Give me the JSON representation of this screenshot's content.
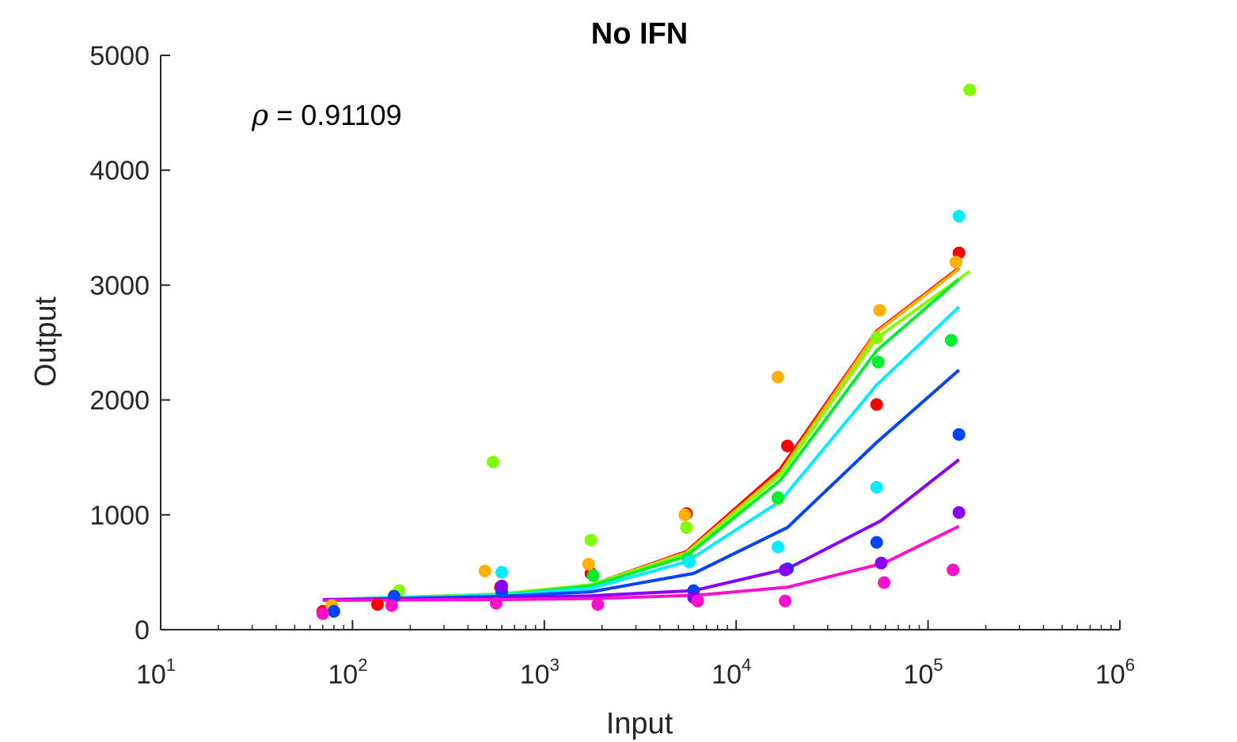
{
  "chart_data": {
    "type": "scatter",
    "title": "No IFN",
    "xlabel": "Input",
    "ylabel": "Output",
    "xscale": "log",
    "xlim": [
      10,
      1000000
    ],
    "ylim": [
      0,
      5000
    ],
    "xticks": [
      {
        "value": 10,
        "base": "10",
        "exp": "1"
      },
      {
        "value": 100,
        "base": "10",
        "exp": "2"
      },
      {
        "value": 1000,
        "base": "10",
        "exp": "3"
      },
      {
        "value": 10000,
        "base": "10",
        "exp": "4"
      },
      {
        "value": 100000,
        "base": "10",
        "exp": "5"
      },
      {
        "value": 1000000,
        "base": "10",
        "exp": "6"
      }
    ],
    "yticks": [
      "0",
      "1000",
      "2000",
      "3000",
      "4000",
      "5000"
    ],
    "grid": false,
    "annotation": {
      "symbol": "ρ",
      "text": " = 0.91109"
    },
    "series": [
      {
        "color": "#ff0000",
        "points": [
          [
            70,
            160
          ],
          [
            135,
            220
          ],
          [
            170,
            310
          ],
          [
            590,
            370
          ],
          [
            1750,
            490
          ],
          [
            5500,
            1010
          ],
          [
            18500,
            1600
          ],
          [
            54000,
            1960
          ],
          [
            145000,
            3280
          ]
        ],
        "fit": [
          [
            70,
            260
          ],
          [
            170,
            280
          ],
          [
            590,
            310
          ],
          [
            1750,
            390
          ],
          [
            5500,
            680
          ],
          [
            17000,
            1400
          ],
          [
            54000,
            2600
          ],
          [
            145000,
            3150
          ]
        ]
      },
      {
        "color": "#ffb000",
        "points": [
          [
            78,
            210
          ],
          [
            165,
            300
          ],
          [
            490,
            510
          ],
          [
            1700,
            570
          ],
          [
            5400,
            1000
          ],
          [
            16500,
            2200
          ],
          [
            56000,
            2780
          ],
          [
            140000,
            3200
          ]
        ],
        "fit": [
          [
            70,
            260
          ],
          [
            170,
            280
          ],
          [
            590,
            310
          ],
          [
            1750,
            390
          ],
          [
            5500,
            670
          ],
          [
            17000,
            1370
          ],
          [
            54000,
            2590
          ],
          [
            145000,
            3140
          ]
        ]
      },
      {
        "color": "#80ff00",
        "points": [
          [
            175,
            340
          ],
          [
            540,
            1460
          ],
          [
            1750,
            780
          ],
          [
            5500,
            890
          ],
          [
            16500,
            1140
          ],
          [
            54000,
            2540
          ],
          [
            165000,
            4700
          ]
        ],
        "fit": [
          [
            70,
            260
          ],
          [
            170,
            280
          ],
          [
            590,
            310
          ],
          [
            1750,
            390
          ],
          [
            5500,
            660
          ],
          [
            17000,
            1350
          ],
          [
            54000,
            2540
          ],
          [
            165000,
            3120
          ]
        ]
      },
      {
        "color": "#00ee30",
        "points": [
          [
            1800,
            470
          ],
          [
            5600,
            620
          ],
          [
            16500,
            1150
          ],
          [
            55000,
            2330
          ],
          [
            132000,
            2520
          ]
        ],
        "fit": [
          [
            70,
            260
          ],
          [
            170,
            280
          ],
          [
            590,
            300
          ],
          [
            1750,
            380
          ],
          [
            5500,
            640
          ],
          [
            17000,
            1300
          ],
          [
            54000,
            2430
          ],
          [
            145000,
            3050
          ]
        ]
      },
      {
        "color": "#00eeff",
        "points": [
          [
            600,
            500
          ],
          [
            5700,
            590
          ],
          [
            16500,
            720
          ],
          [
            54000,
            1240
          ],
          [
            145000,
            3600
          ]
        ],
        "fit": [
          [
            70,
            260
          ],
          [
            170,
            280
          ],
          [
            590,
            300
          ],
          [
            1750,
            360
          ],
          [
            5500,
            590
          ],
          [
            17000,
            1120
          ],
          [
            54000,
            2130
          ],
          [
            145000,
            2810
          ]
        ]
      },
      {
        "color": "#0044ff",
        "points": [
          [
            80,
            160
          ],
          [
            165,
            290
          ],
          [
            600,
            330
          ],
          [
            6000,
            340
          ],
          [
            18500,
            530
          ],
          [
            54000,
            760
          ],
          [
            145000,
            1700
          ]
        ],
        "fit": [
          [
            70,
            260
          ],
          [
            170,
            270
          ],
          [
            590,
            290
          ],
          [
            1750,
            330
          ],
          [
            6000,
            490
          ],
          [
            18500,
            890
          ],
          [
            54000,
            1630
          ],
          [
            145000,
            2260
          ]
        ]
      },
      {
        "color": "#8800ff",
        "points": [
          [
            600,
            380
          ],
          [
            6000,
            280
          ],
          [
            18000,
            520
          ],
          [
            57000,
            580
          ],
          [
            145000,
            1020
          ]
        ],
        "fit": [
          [
            70,
            260
          ],
          [
            170,
            265
          ],
          [
            590,
            275
          ],
          [
            1750,
            295
          ],
          [
            6000,
            340
          ],
          [
            18500,
            530
          ],
          [
            57000,
            950
          ],
          [
            145000,
            1480
          ]
        ]
      },
      {
        "color": "#ff11cc",
        "points": [
          [
            70,
            140
          ],
          [
            160,
            210
          ],
          [
            560,
            230
          ],
          [
            1900,
            220
          ],
          [
            6300,
            250
          ],
          [
            18000,
            250
          ],
          [
            59000,
            410
          ],
          [
            135000,
            520
          ]
        ],
        "fit": [
          [
            70,
            255
          ],
          [
            170,
            258
          ],
          [
            590,
            262
          ],
          [
            1900,
            272
          ],
          [
            6300,
            300
          ],
          [
            18500,
            370
          ],
          [
            59000,
            580
          ],
          [
            145000,
            900
          ]
        ]
      }
    ]
  }
}
